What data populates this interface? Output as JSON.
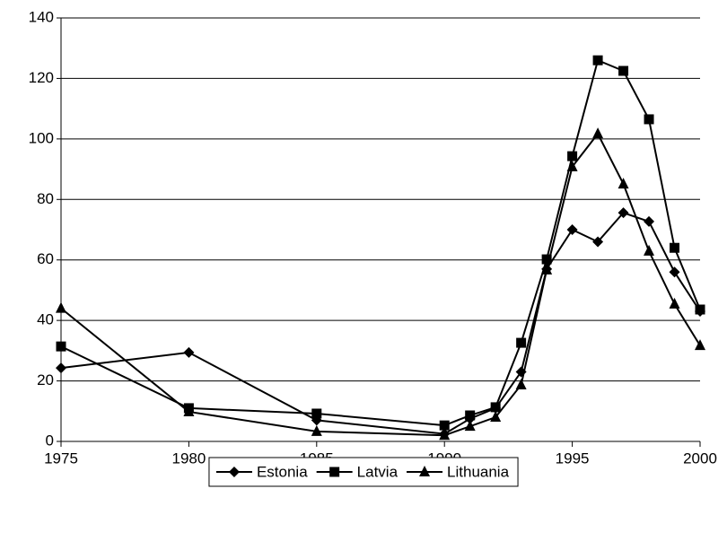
{
  "chart_data": {
    "type": "line",
    "x": [
      1975,
      1980,
      1985,
      1990,
      1991,
      1992,
      1993,
      1994,
      1995,
      1996,
      1997,
      1998,
      1999,
      2000
    ],
    "series": [
      {
        "name": "Estonia",
        "color": "#000000",
        "marker": "diamond",
        "values": [
          24.3,
          29.4,
          7,
          2.5,
          7.5,
          11,
          23,
          57,
          70,
          66,
          75.6,
          72.7,
          56,
          43
        ]
      },
      {
        "name": "Latvia",
        "color": "#000000",
        "marker": "square",
        "values": [
          31.4,
          11,
          9.2,
          5.3,
          8.6,
          11.3,
          32.6,
          60.2,
          94.3,
          126,
          122.5,
          106.5,
          64,
          43.6
        ]
      },
      {
        "name": "Lithuania",
        "color": "#000000",
        "marker": "triangle",
        "values": [
          44,
          9.8,
          3.3,
          2,
          5,
          8,
          18.7,
          56.7,
          90.8,
          101.7,
          85.1,
          62.9,
          45.4,
          31.7
        ]
      }
    ],
    "xlim": [
      1975,
      2000
    ],
    "xticks": [
      1975,
      1980,
      1985,
      1990,
      1995,
      2000
    ],
    "ylim": [
      0,
      140
    ],
    "yticks": [
      0,
      20,
      40,
      60,
      80,
      100,
      120,
      140
    ],
    "grid": true,
    "legend": "bottom"
  }
}
